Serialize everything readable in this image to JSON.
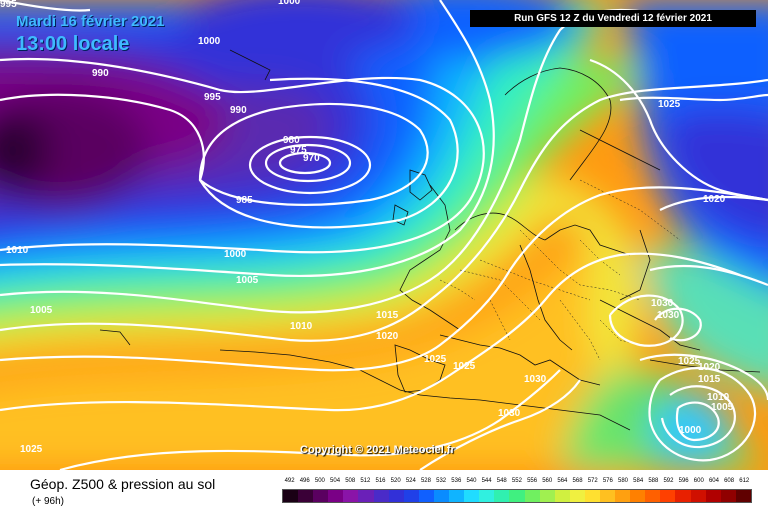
{
  "header": {
    "valid_date": "Mardi 16 février 2021",
    "valid_time": "13:00 locale",
    "run_info": "Run GFS 12 Z du Vendredi 12 février 2021"
  },
  "copyright": "Copyright © 2021 Meteociel.fr",
  "footer": {
    "title": "Géop. Z500 & pression au sol",
    "subtitle": "(+ 96h)"
  },
  "legend": {
    "values": [
      "492",
      "496",
      "500",
      "504",
      "508",
      "512",
      "516",
      "520",
      "524",
      "528",
      "532",
      "536",
      "540",
      "544",
      "548",
      "552",
      "556",
      "560",
      "564",
      "568",
      "572",
      "576",
      "580",
      "584",
      "588",
      "592",
      "596",
      "600",
      "604",
      "608",
      "612"
    ],
    "colors": [
      "#1a0015",
      "#3a0037",
      "#5a0060",
      "#7a0086",
      "#8a14a8",
      "#6a20b8",
      "#4a2bc8",
      "#3230d8",
      "#2040e8",
      "#1060ff",
      "#0a8cff",
      "#10b4ff",
      "#20dcff",
      "#30f0e0",
      "#30f0b0",
      "#40f080",
      "#70f060",
      "#a0f050",
      "#d0f040",
      "#f0f040",
      "#ffe030",
      "#ffc020",
      "#ffa010",
      "#ff8000",
      "#ff6000",
      "#ff4000",
      "#e82000",
      "#d01000",
      "#b00000",
      "#900000",
      "#600000"
    ]
  },
  "isobars": [
    {
      "label": "970"
    },
    {
      "label": "975"
    },
    {
      "label": "980"
    },
    {
      "label": "985"
    },
    {
      "label": "990"
    },
    {
      "label": "990"
    },
    {
      "label": "995"
    },
    {
      "label": "995"
    },
    {
      "label": "1000"
    },
    {
      "label": "1000"
    },
    {
      "label": "1005"
    },
    {
      "label": "1005"
    },
    {
      "label": "1010"
    },
    {
      "label": "1010"
    },
    {
      "label": "1015"
    },
    {
      "label": "1020"
    },
    {
      "label": "1025"
    },
    {
      "label": "1025"
    },
    {
      "label": "1030"
    },
    {
      "label": "1030"
    },
    {
      "label": "1025"
    },
    {
      "label": "1020"
    },
    {
      "label": "1030"
    },
    {
      "label": "1030"
    },
    {
      "label": "1025"
    },
    {
      "label": "1020"
    },
    {
      "label": "1015"
    },
    {
      "label": "1010"
    },
    {
      "label": "1005"
    },
    {
      "label": "1000"
    },
    {
      "label": "1025"
    },
    {
      "label": "1000"
    }
  ]
}
